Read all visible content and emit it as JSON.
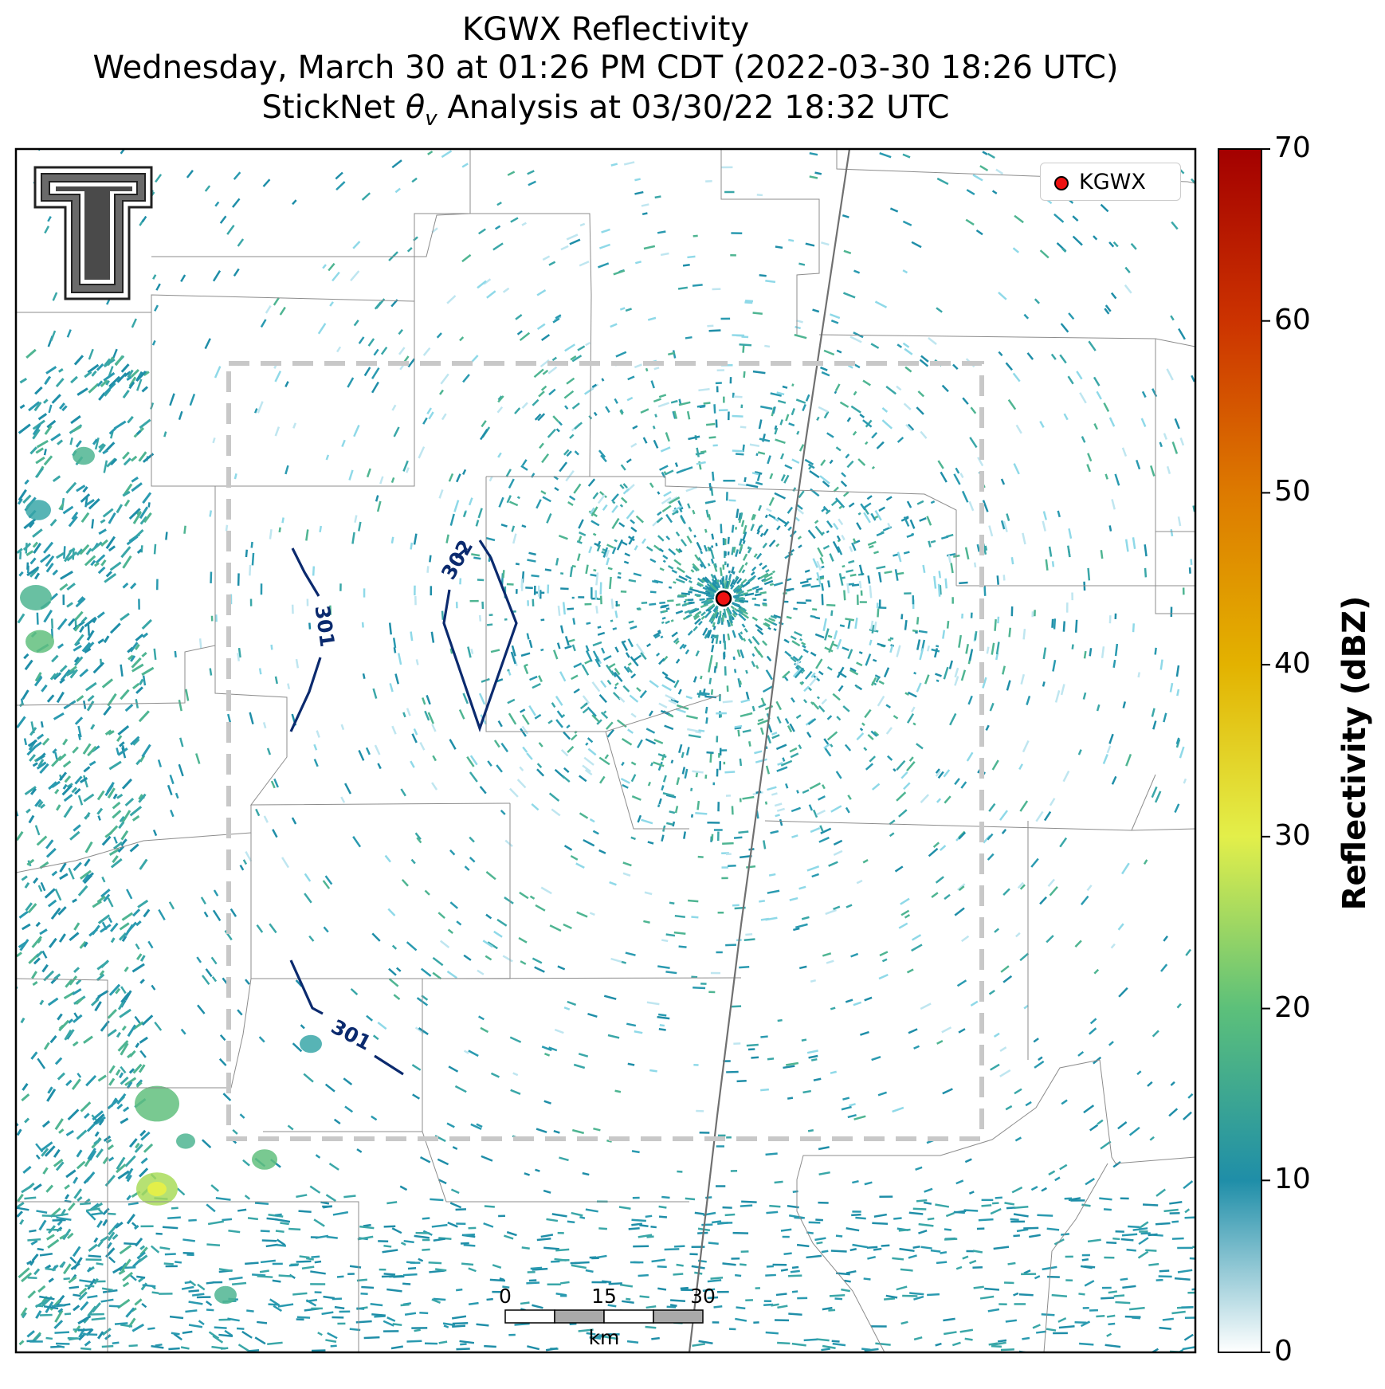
{
  "title": {
    "line1": "KGWX Reflectivity",
    "line2": "Wednesday, March 30 at 01:26 PM CDT (2022-03-30 18:26 UTC)",
    "line3_prefix": "StickNet ",
    "line3_symbol": "θ",
    "line3_subscript": "v",
    "line3_suffix": " Analysis at 03/30/22 18:32 UTC"
  },
  "colorbar": {
    "label": "Reflectivity (dBZ)",
    "ticks": [
      "0",
      "10",
      "20",
      "30",
      "40",
      "50",
      "60",
      "70"
    ],
    "min": 0,
    "max": 70,
    "stops": [
      {
        "v": 0,
        "c": "#ffffff"
      },
      {
        "v": 10,
        "c": "#1f8ea8"
      },
      {
        "v": 20,
        "c": "#5cc07a"
      },
      {
        "v": 30,
        "c": "#e3ef4a"
      },
      {
        "v": 40,
        "c": "#e3b200"
      },
      {
        "v": 50,
        "c": "#dd7a00"
      },
      {
        "v": 60,
        "c": "#cc3300"
      },
      {
        "v": 70,
        "c": "#a30000"
      }
    ]
  },
  "legend": {
    "label": "KGWX",
    "marker_color": "#ee1111"
  },
  "radar_site": {
    "name": "KGWX"
  },
  "contours": [
    {
      "label": "301",
      "color": "#0b2a6e"
    },
    {
      "label": "302",
      "color": "#0b2a6e"
    },
    {
      "label": "301",
      "color": "#0b2a6e"
    }
  ],
  "scale_bar": {
    "ticks": [
      "0",
      "15",
      "30"
    ],
    "unit": "km"
  },
  "analysis_domain": {
    "style": "dashed",
    "color": "#c8c8c8"
  },
  "logo": {
    "text": "T"
  }
}
